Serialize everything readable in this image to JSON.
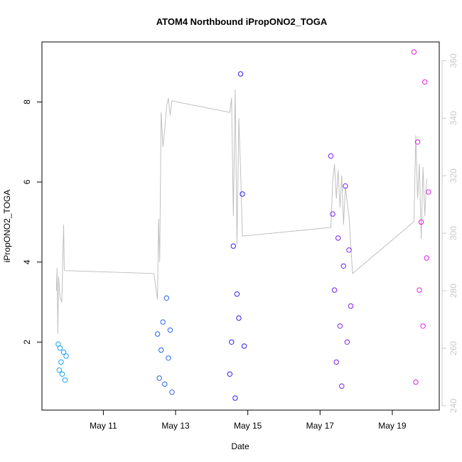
{
  "chart_data": {
    "type": "scatter",
    "title": "ATOM4 Northbound iPropONO2_TOGA",
    "xlabel": "Date",
    "ylabel": "iPropONO2_TOGA",
    "x_ticks": [
      "May 11",
      "May 13",
      "May 15",
      "May 17",
      "May 19"
    ],
    "x_tick_days": [
      11,
      13,
      15,
      17,
      19
    ],
    "xlim_days": [
      9.3,
      20.3
    ],
    "y_ticks": [
      2,
      4,
      6,
      8
    ],
    "ylim": [
      0.3,
      9.5
    ],
    "y2_ticks": [
      240,
      260,
      280,
      300,
      320,
      340,
      360
    ],
    "y2lim": [
      238.5,
      366.5
    ],
    "grid": false,
    "legend": "none",
    "colors": {
      "axes": "#000000",
      "secondary_axis": "#c8c8c8",
      "secondary_line": "#c0c0c0"
    },
    "series": [
      {
        "color": "#1ea0f0",
        "days": [
          9.75,
          9.78,
          9.8,
          9.83,
          9.86,
          9.9,
          9.94,
          9.97
        ],
        "values": [
          1.95,
          1.3,
          1.85,
          1.5,
          1.2,
          1.75,
          1.05,
          1.65
        ]
      },
      {
        "color": "#2a64e8",
        "days": [
          12.5,
          12.55,
          12.6,
          12.65,
          12.7,
          12.75,
          12.8,
          12.85,
          12.9
        ],
        "values": [
          2.2,
          1.1,
          1.8,
          2.5,
          0.95,
          3.1,
          1.6,
          2.3,
          0.75
        ]
      },
      {
        "color": "#2e1ee8",
        "days": [
          14.5,
          14.55,
          14.6,
          14.65,
          14.7,
          14.75,
          14.8,
          14.85,
          14.9
        ],
        "values": [
          1.2,
          2.0,
          4.4,
          0.6,
          3.2,
          2.6,
          8.7,
          5.7,
          1.9
        ]
      },
      {
        "color": "#7a1ee8",
        "days": [
          17.3,
          17.35,
          17.4,
          17.45,
          17.5,
          17.55,
          17.6,
          17.65,
          17.7,
          17.75,
          17.8,
          17.85
        ],
        "values": [
          6.65,
          5.2,
          3.3,
          1.5,
          4.6,
          2.4,
          0.9,
          3.9,
          5.9,
          2.0,
          4.3,
          2.9
        ]
      },
      {
        "color": "#e01ee0",
        "days": [
          19.6,
          19.65,
          19.7,
          19.75,
          19.8,
          19.85,
          19.9,
          19.95,
          20.0
        ],
        "values": [
          9.25,
          1.0,
          7.0,
          3.3,
          5.0,
          2.4,
          8.5,
          4.1,
          5.75
        ]
      }
    ],
    "secondary_series": {
      "days": [
        9.7,
        9.72,
        9.74,
        9.76,
        9.8,
        9.85,
        9.9,
        9.92,
        12.4,
        12.5,
        12.53,
        12.56,
        12.6,
        12.65,
        12.7,
        12.75,
        12.8,
        12.85,
        12.9,
        14.5,
        14.55,
        14.6,
        14.65,
        14.7,
        14.75,
        14.8,
        14.85,
        17.3,
        17.35,
        17.4,
        17.45,
        17.5,
        17.55,
        17.6,
        17.65,
        17.7,
        17.75,
        17.8,
        17.85,
        17.9,
        19.6,
        19.65,
        19.7,
        19.75,
        19.8,
        19.85,
        19.9,
        19.95
      ],
      "values": [
        280,
        288,
        265,
        285,
        278,
        276,
        303,
        287,
        286,
        277,
        305,
        290,
        342,
        330,
        336,
        344,
        347,
        341,
        346,
        342,
        347,
        306,
        350,
        296,
        340,
        322,
        299,
        302,
        318,
        324,
        312,
        322,
        309,
        320,
        303,
        316,
        311,
        306,
        296,
        286,
        304,
        334,
        312,
        324,
        298,
        323,
        306,
        319
      ]
    }
  }
}
